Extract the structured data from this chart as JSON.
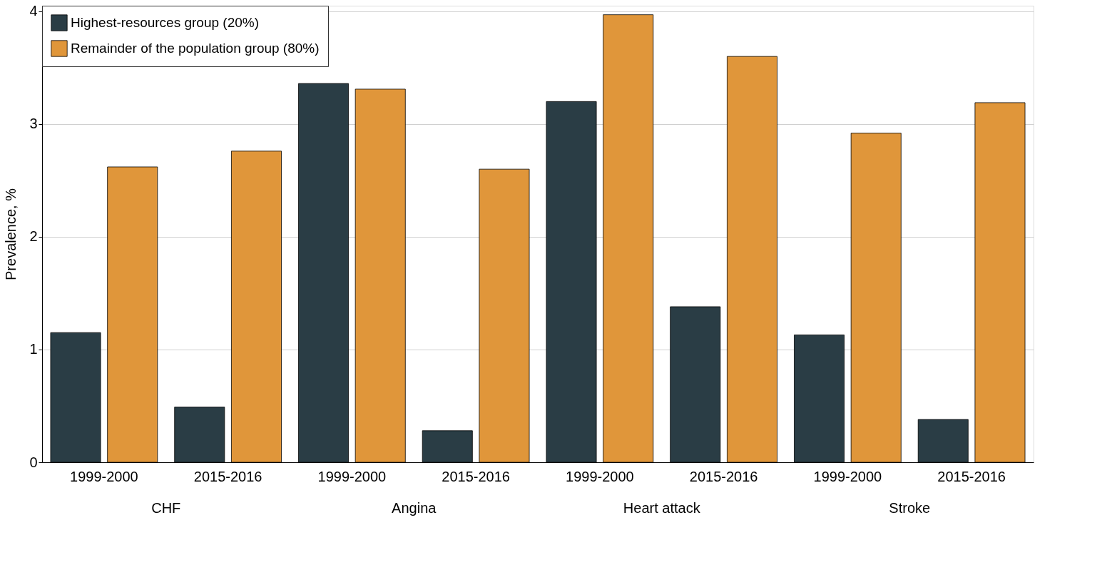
{
  "chart_data": {
    "type": "bar",
    "ylabel": "Prevalence, %",
    "categories": [
      "1999-2000",
      "2015-2016",
      "1999-2000",
      "2015-2016",
      "1999-2000",
      "2015-2016",
      "1999-2000",
      "2015-2016"
    ],
    "series": [
      {
        "name": "Highest-resources group (20%)",
        "color": "#2a3d45",
        "values": [
          1.15,
          0.49,
          3.36,
          0.28,
          3.2,
          1.38,
          1.13,
          0.38
        ]
      },
      {
        "name": "Remainder of the population group (80%)",
        "color": "#e0963a",
        "values": [
          2.62,
          2.76,
          3.31,
          2.6,
          3.97,
          3.6,
          2.92,
          3.19
        ]
      }
    ],
    "annotations": [
      "CHF",
      "Angina",
      "Heart attack",
      "Stroke"
    ],
    "ylim": [
      0,
      4.05
    ],
    "yticks": [
      0,
      1,
      2,
      3,
      4
    ],
    "grid": "y",
    "legend": "top left"
  }
}
